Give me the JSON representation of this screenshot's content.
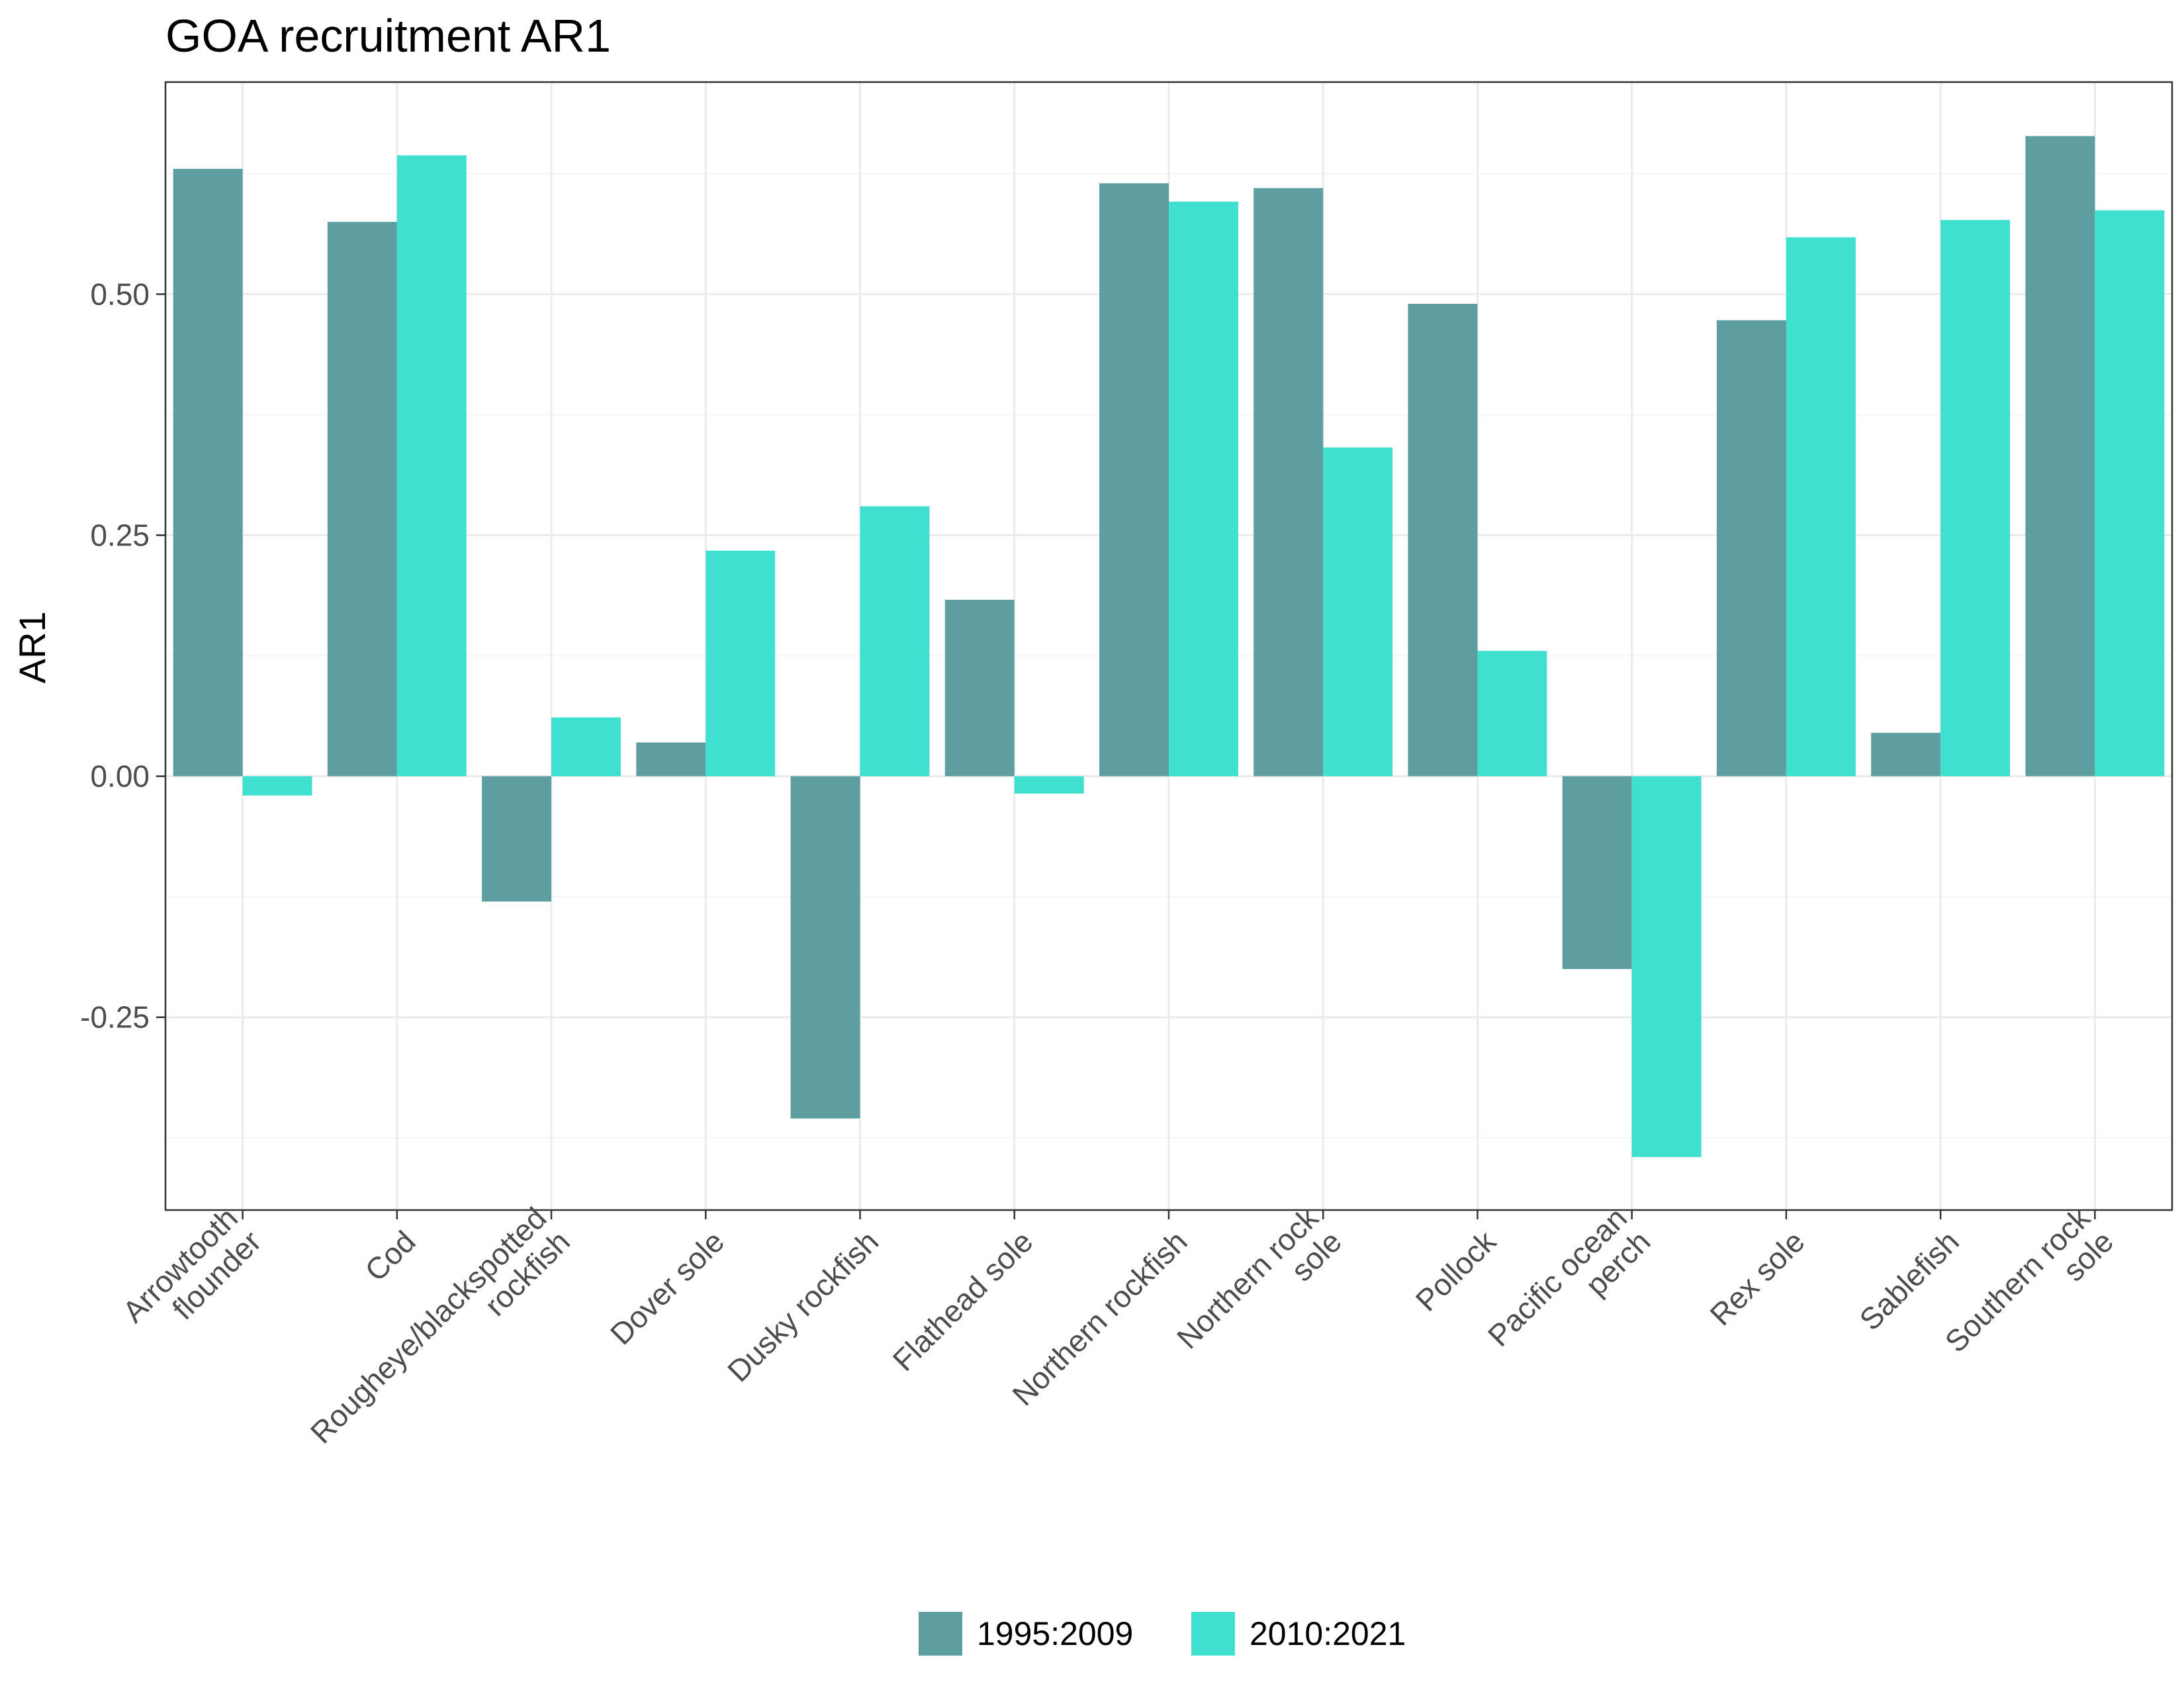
{
  "chart_data": {
    "type": "bar",
    "title": "GOA recruitment AR1",
    "xlabel": "",
    "ylabel": "AR1",
    "ylim": [
      -0.45,
      0.72
    ],
    "yticks": [
      -0.25,
      0.0,
      0.25,
      0.5
    ],
    "ytick_labels": [
      "-0.25",
      "0.00",
      "0.25",
      "0.50"
    ],
    "grid": true,
    "legend_position": "bottom",
    "categories": [
      "Arrowtooth flounder",
      "Cod",
      "Rougheye/blackspotted rockfish",
      "Dover sole",
      "Dusky rockfish",
      "Flathead sole",
      "Northern rockfish",
      "Northern rock sole",
      "Pollock",
      "Pacific ocean perch",
      "Rex sole",
      "Sablefish",
      "Southern rock sole"
    ],
    "category_label_lines": [
      [
        "Arrowtooth",
        "flounder"
      ],
      [
        "Cod"
      ],
      [
        "Rougheye/blackspotted",
        "rockfish"
      ],
      [
        "Dover sole"
      ],
      [
        "Dusky rockfish"
      ],
      [
        "Flathead sole"
      ],
      [
        "Northern rockfish"
      ],
      [
        "Northern rock",
        "sole"
      ],
      [
        "Pollock"
      ],
      [
        "Pacific ocean",
        "perch"
      ],
      [
        "Rex sole"
      ],
      [
        "Sablefish"
      ],
      [
        "Southern rock",
        "sole"
      ]
    ],
    "series": [
      {
        "name": "1995:2009",
        "color": "#5f9ea0",
        "values": [
          0.63,
          0.575,
          -0.13,
          0.035,
          -0.355,
          0.183,
          0.615,
          0.61,
          0.49,
          -0.2,
          0.473,
          0.045,
          0.664
        ]
      },
      {
        "name": "2010:2021",
        "color": "#40e0d0",
        "values": [
          -0.02,
          0.644,
          0.061,
          0.234,
          0.28,
          -0.018,
          0.596,
          0.341,
          0.13,
          -0.395,
          0.559,
          0.577,
          0.587
        ]
      }
    ]
  }
}
